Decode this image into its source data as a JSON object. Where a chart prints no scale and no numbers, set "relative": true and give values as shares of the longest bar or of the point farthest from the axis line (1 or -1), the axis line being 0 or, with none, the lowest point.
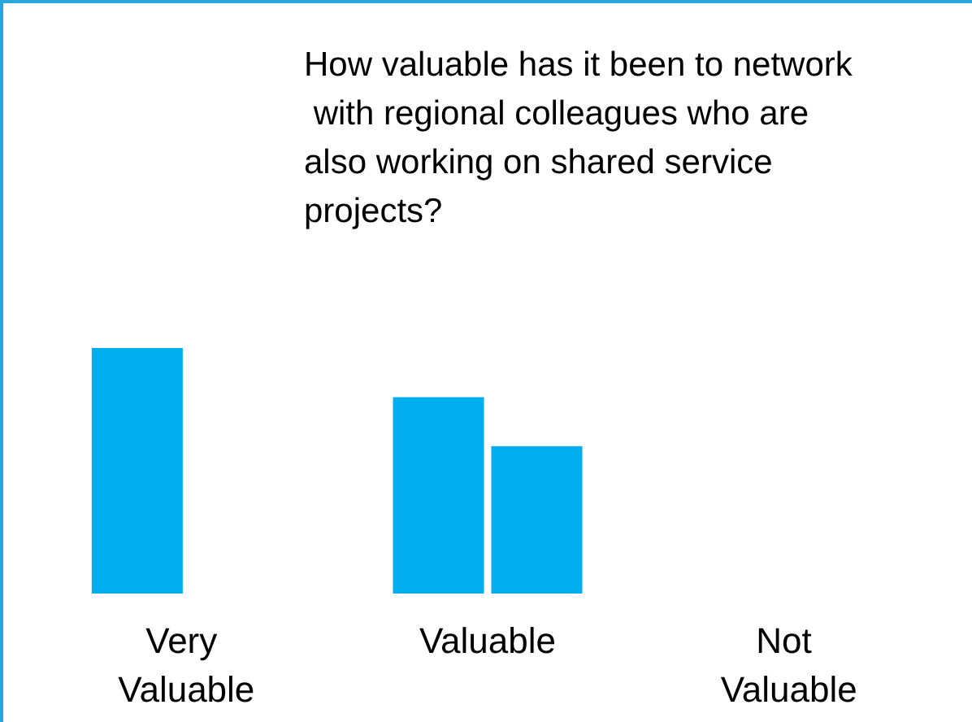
{
  "chart_data": {
    "type": "bar",
    "title": "How valuable has it been to network with regional colleagues who are also working on shared service projects?",
    "categories": [
      "Very Valuable",
      "Valuable",
      "Not Valuable"
    ],
    "relative": true,
    "series": [
      {
        "color": "#00aeef",
        "values": [
          1,
          0.8,
          0
        ]
      },
      {
        "color": "#00aeef",
        "values": [
          null,
          0.6,
          null
        ]
      }
    ]
  }
}
